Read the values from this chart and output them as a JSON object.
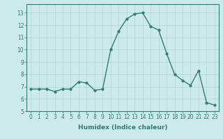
{
  "x": [
    0,
    1,
    2,
    3,
    4,
    5,
    6,
    7,
    8,
    9,
    10,
    11,
    12,
    13,
    14,
    15,
    16,
    17,
    18,
    19,
    20,
    21,
    22,
    23
  ],
  "y": [
    6.8,
    6.8,
    6.8,
    6.6,
    6.8,
    6.8,
    7.4,
    7.3,
    6.7,
    6.8,
    10.0,
    11.5,
    12.5,
    12.9,
    13.0,
    11.9,
    11.6,
    9.7,
    8.0,
    7.5,
    7.1,
    8.3,
    5.7,
    5.5
  ],
  "line_color": "#2e7d6e",
  "marker": "o",
  "markersize": 2.0,
  "linewidth": 1.0,
  "bg_color": "#cceae7",
  "grid_color": "#aacfcb",
  "xlabel": "Humidex (Indice chaleur)",
  "ylabel": "",
  "xlim": [
    -0.5,
    23.5
  ],
  "ylim": [
    5,
    13.7
  ],
  "yticks": [
    5,
    6,
    7,
    8,
    9,
    10,
    11,
    12,
    13
  ],
  "xticks": [
    0,
    1,
    2,
    3,
    4,
    5,
    6,
    7,
    8,
    9,
    10,
    11,
    12,
    13,
    14,
    15,
    16,
    17,
    18,
    19,
    20,
    21,
    22,
    23
  ],
  "tick_color": "#2e7d6e",
  "tick_fontsize": 5.5,
  "xlabel_fontsize": 6.5
}
